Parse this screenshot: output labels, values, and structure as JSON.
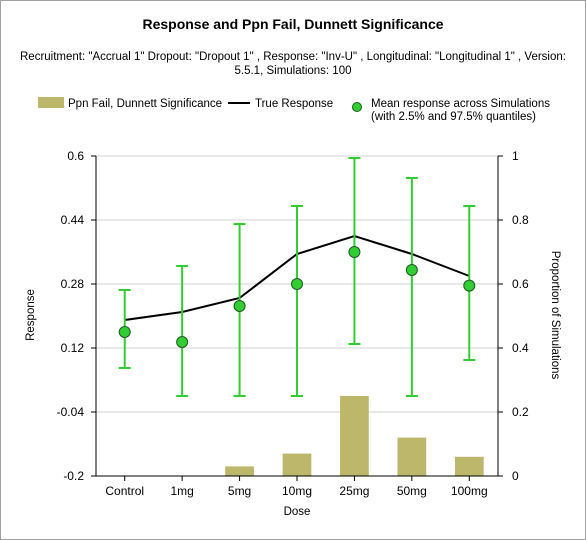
{
  "chart_data": {
    "type": "bar+line+scatter",
    "title": "Response and Ppn Fail, Dunnett Significance",
    "subtitle": "Recruitment: \"Accrual 1\" Dropout: \"Dropout 1\" , Response: \"Inv-U\" , Longitudinal: \"Longitudinal 1\" , Version: 5.5.1, Simulations: 100",
    "xlabel": "Dose",
    "ylabel_left": "Response",
    "ylabel_right": "Proportion of Simulations",
    "categories": [
      "Control",
      "1mg",
      "5mg",
      "10mg",
      "25mg",
      "50mg",
      "100mg"
    ],
    "ylim_left": [
      -0.2,
      0.6
    ],
    "yticks_left": [
      "0.6",
      "0.44",
      "0.28",
      "0.12",
      "-0.04",
      "-0.2"
    ],
    "ylim_right": [
      0,
      1
    ],
    "yticks_right": [
      "1",
      "0.8",
      "0.6",
      "0.4",
      "0.2",
      "0"
    ],
    "legend": {
      "bar": "Ppn Fail, Dunnett Significance",
      "line": "True Response",
      "points": "Mean response across Simulations (with 2.5% and 97.5% quantiles)"
    },
    "colors": {
      "bar": "#bdb76b",
      "line": "#000000",
      "points": "#32cd32",
      "errorbars": "#32cd32",
      "grid": "#d3d3d3"
    },
    "series": [
      {
        "name": "Ppn Fail, Dunnett Significance",
        "kind": "bar",
        "axis": "right",
        "values": [
          0,
          0,
          0.03,
          0.07,
          0.25,
          0.12,
          0.06
        ]
      },
      {
        "name": "True Response",
        "kind": "line",
        "axis": "left",
        "values": [
          0.19,
          0.21,
          0.245,
          0.355,
          0.4,
          0.355,
          0.3
        ]
      },
      {
        "name": "Mean response across Simulations",
        "kind": "scatter",
        "axis": "left",
        "values": [
          0.16,
          0.135,
          0.225,
          0.28,
          0.36,
          0.315,
          0.276
        ],
        "lower": [
          0.07,
          0.0,
          0.0,
          0.0,
          0.13,
          0.0,
          0.09
        ],
        "upper": [
          0.265,
          0.325,
          0.43,
          0.475,
          0.595,
          0.545,
          0.475
        ]
      }
    ],
    "grid": "horizontal"
  }
}
